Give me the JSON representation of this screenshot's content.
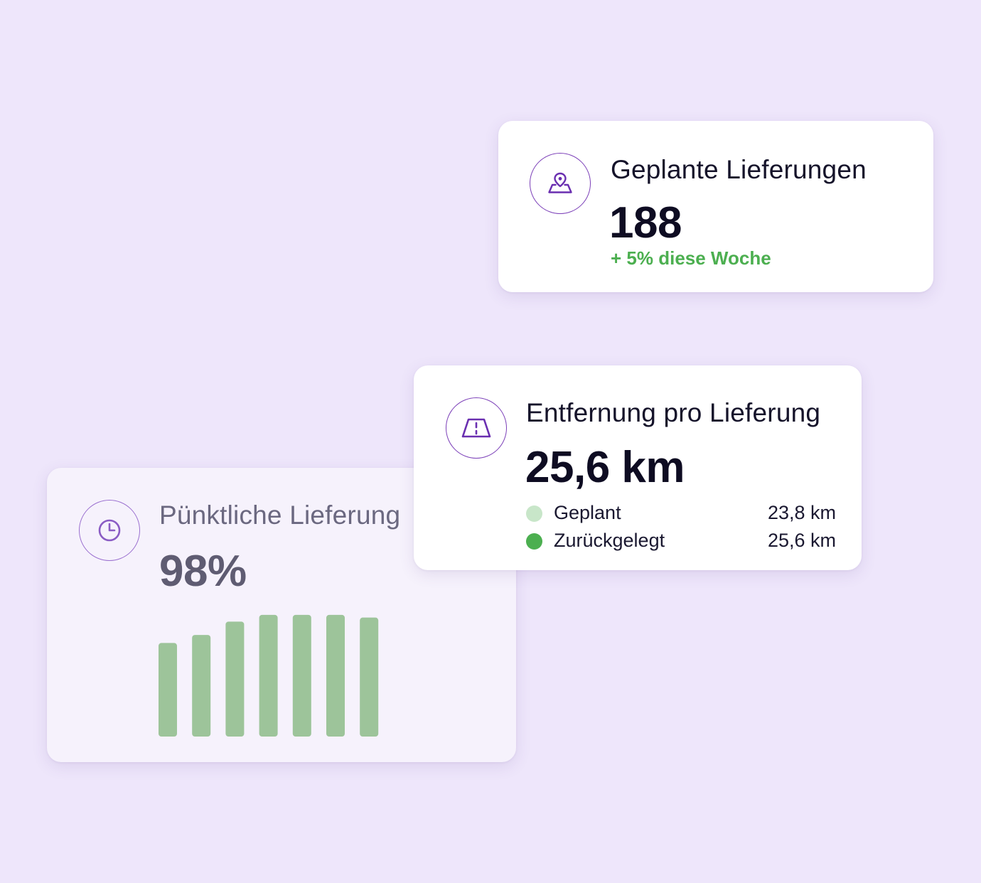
{
  "planned": {
    "title": "Geplante Lieferungen",
    "value": "188",
    "trend": "+ 5% diese Woche",
    "icon": "map-pin-icon"
  },
  "distance": {
    "title": "Entfernung pro Lieferung",
    "value": "25,6 km",
    "icon": "road-icon",
    "legend": [
      {
        "label": "Geplant",
        "value": "23,8 km",
        "color": "#c8e6c9"
      },
      {
        "label": "Zurückgelegt",
        "value": "25,6 km",
        "color": "#4caf50"
      }
    ]
  },
  "ontime": {
    "title": "Pünktliche Lieferung",
    "value": "98%",
    "icon": "clock-icon"
  },
  "colors": {
    "background": "#eee6fb",
    "accent": "#6a2fb0",
    "positive": "#4caf50",
    "bar": "#9dc49a"
  },
  "chart_data": {
    "type": "bar",
    "categories": [
      "",
      "",
      "",
      "",
      "",
      "",
      ""
    ],
    "values": [
      70,
      76,
      86,
      91,
      91,
      91,
      89
    ],
    "ylim": [
      0,
      100
    ],
    "title": "",
    "xlabel": "",
    "ylabel": "",
    "grid": false
  }
}
